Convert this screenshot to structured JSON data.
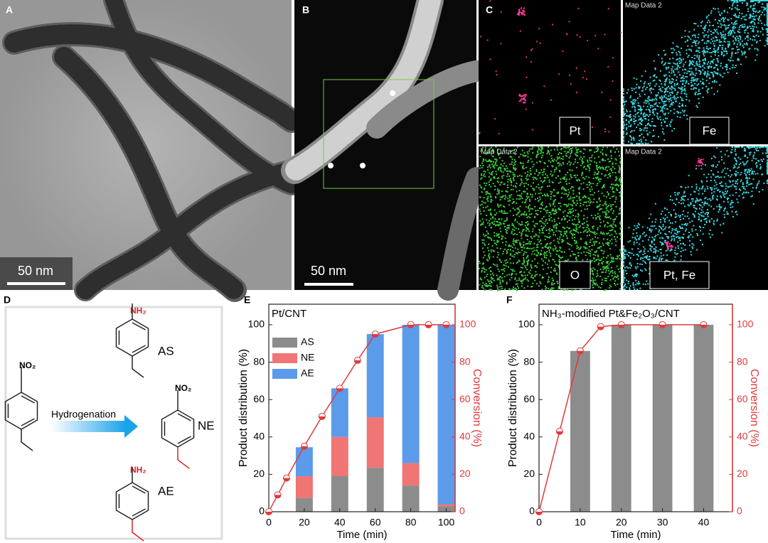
{
  "panels": {
    "a": {
      "label": "A",
      "scale_bar": "50 nm"
    },
    "b": {
      "label": "B",
      "scale_bar": "50 nm"
    },
    "c": {
      "label": "C",
      "maps": [
        {
          "element": "Pt"
        },
        {
          "header": "Map Data 2",
          "element": "Fe"
        },
        {
          "header": "Map Data 2",
          "element": "O"
        },
        {
          "header": "Map Data 2",
          "element": "Pt, Fe"
        }
      ]
    },
    "d": {
      "label": "D",
      "reactant": {
        "group": "NO₂"
      },
      "arrow": "Hydrogenation",
      "products": [
        {
          "group": "NH₂",
          "name": "AS"
        },
        {
          "group": "NO₂",
          "name": "NE"
        },
        {
          "group": "NH₂",
          "name": "AE"
        }
      ]
    }
  },
  "chart_data": [
    {
      "type": "bar",
      "stacked": true,
      "panel_label": "E",
      "title": "Pt/CNT",
      "x": [
        20,
        40,
        60,
        80,
        100
      ],
      "series": [
        {
          "name": "AS",
          "color": "#8c8c8c",
          "values": [
            7.5,
            19,
            23.5,
            14,
            3
          ]
        },
        {
          "name": "NE",
          "color": "#f07575",
          "values": [
            11.5,
            21,
            27,
            12,
            1
          ]
        },
        {
          "name": "AE",
          "color": "#5b9bea",
          "values": [
            15.5,
            26,
            44.5,
            74,
            96
          ]
        }
      ],
      "line": {
        "color": "#e0393c",
        "axis": "y2",
        "x": [
          0,
          5,
          10,
          20,
          30,
          40,
          50,
          60,
          80,
          90,
          100
        ],
        "values": [
          0,
          9,
          18,
          35,
          51,
          66,
          81,
          95,
          100,
          100,
          100
        ]
      },
      "xlabel": "Time (min)",
      "ylabel": "Product distribution (%)",
      "y2label": "Conversion (%)",
      "xlim": [
        0,
        105
      ],
      "ylim": [
        0,
        111
      ],
      "y2lim": [
        0,
        111
      ],
      "xticks": [
        0,
        20,
        40,
        60,
        80,
        100
      ],
      "yticks": [
        0,
        20,
        40,
        60,
        80,
        100
      ],
      "y2ticks": [
        0,
        20,
        40,
        60,
        80,
        100
      ],
      "legend": "upper left"
    },
    {
      "type": "bar",
      "stacked": true,
      "panel_label": "F",
      "title": "NH₃-modified Pt&Fe₂O₃/CNT",
      "x": [
        10,
        20,
        30,
        40
      ],
      "series": [
        {
          "color": "#8c8c8c",
          "values": [
            86,
            100,
            100,
            100
          ]
        }
      ],
      "line": {
        "color": "#e0393c",
        "axis": "y2",
        "x": [
          0,
          5,
          10,
          15,
          20,
          30,
          40
        ],
        "values": [
          0,
          43,
          86,
          99,
          100,
          100,
          100
        ]
      },
      "xlabel": "Time (min)",
      "ylabel": "Product distribution (%)",
      "y2label": "Conversion (%)",
      "xlim": [
        0,
        47
      ],
      "ylim": [
        0,
        111
      ],
      "y2lim": [
        0,
        111
      ],
      "xticks": [
        0,
        10,
        20,
        30,
        40
      ],
      "yticks": [
        0,
        20,
        40,
        60,
        80,
        100
      ],
      "y2ticks": [
        0,
        20,
        40,
        60,
        80,
        100
      ]
    }
  ]
}
